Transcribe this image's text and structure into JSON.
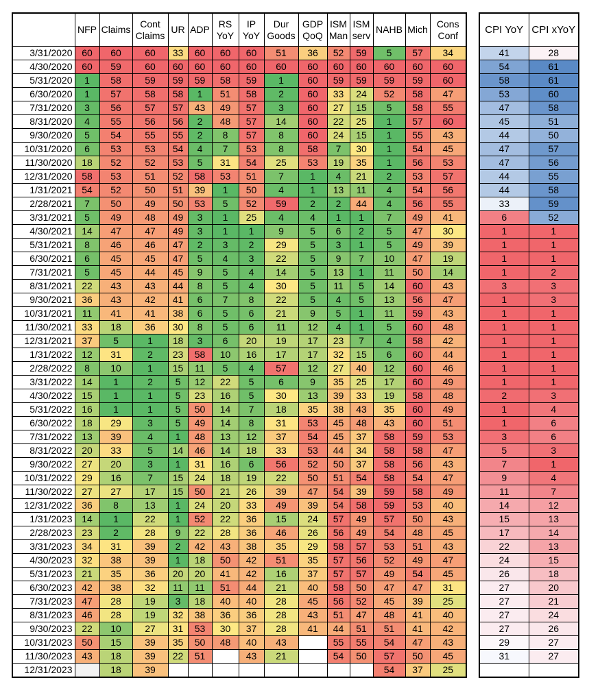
{
  "main_headers": [
    "",
    "NFP",
    "Claims",
    "Cont Claims",
    "UR",
    "ADP",
    "RS YoY",
    "IP YoY",
    "Dur Goods",
    "GDP QoQ",
    "ISM Man",
    "ISM serv",
    "NAHB",
    "Mich",
    "Cons Conf"
  ],
  "cpi_headers": [
    "CPI YoY",
    "CPI xYoY"
  ],
  "colors": {
    "low": "#5ab865",
    "mid": "#fde884",
    "high": "#f0666b",
    "cpi_low": "#f0666b",
    "cpi_mid": "#fcfcff",
    "cpi_high": "#5a8ac6",
    "blank": "#ffffff",
    "gray": "#f2f2f2"
  },
  "chart_data": {
    "type": "table",
    "rows": [
      {
        "date": "3/31/2020",
        "values": [
          60,
          60,
          60,
          33,
          60,
          60,
          60,
          51,
          36,
          52,
          59,
          5,
          57,
          34
        ],
        "cpi": [
          41,
          28
        ]
      },
      {
        "date": "4/30/2020",
        "values": [
          60,
          59,
          60,
          60,
          60,
          60,
          60,
          60,
          60,
          60,
          60,
          60,
          60,
          60
        ],
        "cpi": [
          54,
          61
        ]
      },
      {
        "date": "5/31/2020",
        "values": [
          1,
          58,
          59,
          59,
          59,
          58,
          59,
          1,
          60,
          59,
          59,
          59,
          59,
          60
        ],
        "cpi": [
          58,
          61
        ]
      },
      {
        "date": "6/30/2020",
        "values": [
          1,
          57,
          58,
          58,
          1,
          51,
          58,
          2,
          60,
          33,
          24,
          52,
          58,
          47
        ],
        "cpi": [
          53,
          60
        ]
      },
      {
        "date": "7/31/2020",
        "values": [
          3,
          56,
          57,
          57,
          43,
          49,
          57,
          3,
          60,
          27,
          15,
          5,
          58,
          55
        ],
        "cpi": [
          47,
          58
        ]
      },
      {
        "date": "8/31/2020",
        "values": [
          4,
          55,
          56,
          56,
          2,
          48,
          57,
          14,
          60,
          22,
          25,
          1,
          57,
          60
        ],
        "cpi": [
          45,
          51
        ]
      },
      {
        "date": "9/30/2020",
        "values": [
          5,
          54,
          55,
          55,
          2,
          8,
          57,
          8,
          60,
          24,
          15,
          1,
          55,
          43
        ],
        "cpi": [
          44,
          50
        ]
      },
      {
        "date": "10/31/2020",
        "values": [
          6,
          53,
          53,
          54,
          4,
          7,
          53,
          8,
          58,
          7,
          30,
          1,
          54,
          45
        ],
        "cpi": [
          47,
          57
        ]
      },
      {
        "date": "11/30/2020",
        "values": [
          18,
          52,
          52,
          53,
          5,
          31,
          54,
          25,
          53,
          19,
          35,
          1,
          56,
          53
        ],
        "cpi": [
          47,
          56
        ]
      },
      {
        "date": "12/31/2020",
        "values": [
          58,
          53,
          51,
          52,
          58,
          53,
          51,
          7,
          1,
          4,
          21,
          2,
          53,
          57
        ],
        "cpi": [
          44,
          55
        ]
      },
      {
        "date": "1/31/2021",
        "values": [
          54,
          52,
          50,
          51,
          39,
          1,
          50,
          4,
          1,
          13,
          11,
          4,
          54,
          56
        ],
        "cpi": [
          44,
          58
        ]
      },
      {
        "date": "2/28/2021",
        "values": [
          7,
          50,
          49,
          50,
          53,
          5,
          52,
          59,
          2,
          2,
          44,
          4,
          56,
          55
        ],
        "cpi": [
          33,
          59
        ]
      },
      {
        "date": "3/31/2021",
        "values": [
          5,
          49,
          48,
          49,
          3,
          1,
          25,
          4,
          4,
          1,
          1,
          7,
          49,
          41
        ],
        "cpi": [
          6,
          52
        ]
      },
      {
        "date": "4/30/2021",
        "values": [
          14,
          47,
          47,
          49,
          3,
          1,
          1,
          9,
          5,
          6,
          2,
          5,
          47,
          30
        ],
        "cpi": [
          1,
          1
        ]
      },
      {
        "date": "5/31/2021",
        "values": [
          8,
          46,
          46,
          47,
          2,
          3,
          2,
          29,
          5,
          3,
          1,
          5,
          49,
          39
        ],
        "cpi": [
          1,
          1
        ]
      },
      {
        "date": "6/30/2021",
        "values": [
          6,
          45,
          45,
          47,
          5,
          4,
          3,
          22,
          5,
          9,
          7,
          10,
          47,
          19
        ],
        "cpi": [
          1,
          1
        ]
      },
      {
        "date": "7/31/2021",
        "values": [
          5,
          45,
          44,
          45,
          9,
          5,
          4,
          14,
          5,
          13,
          1,
          11,
          50,
          14
        ],
        "cpi": [
          1,
          2
        ]
      },
      {
        "date": "8/31/2021",
        "values": [
          22,
          43,
          43,
          44,
          8,
          5,
          4,
          30,
          5,
          11,
          5,
          14,
          60,
          43
        ],
        "cpi": [
          3,
          3
        ]
      },
      {
        "date": "9/30/2021",
        "values": [
          36,
          43,
          42,
          41,
          6,
          7,
          8,
          22,
          5,
          4,
          5,
          13,
          56,
          47
        ],
        "cpi": [
          1,
          3
        ]
      },
      {
        "date": "10/31/2021",
        "values": [
          11,
          41,
          41,
          38,
          6,
          5,
          6,
          21,
          9,
          5,
          1,
          11,
          59,
          43
        ],
        "cpi": [
          1,
          1
        ]
      },
      {
        "date": "11/30/2021",
        "values": [
          33,
          18,
          36,
          30,
          8,
          5,
          6,
          11,
          12,
          4,
          1,
          5,
          60,
          48
        ],
        "cpi": [
          1,
          1
        ]
      },
      {
        "date": "12/31/2021",
        "values": [
          37,
          5,
          1,
          18,
          3,
          6,
          20,
          19,
          17,
          23,
          7,
          4,
          58,
          42
        ],
        "cpi": [
          1,
          1
        ]
      },
      {
        "date": "1/31/2022",
        "values": [
          12,
          31,
          2,
          23,
          58,
          10,
          16,
          17,
          17,
          32,
          15,
          6,
          60,
          44
        ],
        "cpi": [
          1,
          1
        ]
      },
      {
        "date": "2/28/2022",
        "values": [
          8,
          10,
          1,
          15,
          11,
          5,
          4,
          57,
          12,
          27,
          40,
          12,
          60,
          46
        ],
        "cpi": [
          1,
          1
        ]
      },
      {
        "date": "3/31/2022",
        "values": [
          14,
          1,
          2,
          5,
          12,
          22,
          5,
          6,
          9,
          35,
          25,
          17,
          60,
          49
        ],
        "cpi": [
          1,
          1
        ]
      },
      {
        "date": "4/30/2022",
        "values": [
          15,
          1,
          1,
          5,
          23,
          16,
          5,
          30,
          13,
          39,
          33,
          19,
          58,
          48
        ],
        "cpi": [
          2,
          3
        ]
      },
      {
        "date": "5/31/2022",
        "values": [
          16,
          1,
          1,
          5,
          50,
          14,
          7,
          18,
          35,
          38,
          43,
          35,
          60,
          49
        ],
        "cpi": [
          1,
          4
        ]
      },
      {
        "date": "6/30/2022",
        "values": [
          18,
          29,
          3,
          5,
          49,
          14,
          8,
          31,
          53,
          45,
          48,
          43,
          60,
          51
        ],
        "cpi": [
          1,
          6
        ]
      },
      {
        "date": "7/31/2022",
        "values": [
          13,
          39,
          4,
          1,
          48,
          13,
          12,
          37,
          54,
          45,
          37,
          58,
          59,
          53
        ],
        "cpi": [
          3,
          6
        ]
      },
      {
        "date": "8/31/2022",
        "values": [
          20,
          33,
          5,
          14,
          46,
          14,
          18,
          33,
          53,
          44,
          34,
          58,
          58,
          47
        ],
        "cpi": [
          5,
          3
        ]
      },
      {
        "date": "9/30/2022",
        "values": [
          27,
          20,
          3,
          1,
          31,
          16,
          6,
          56,
          52,
          50,
          37,
          58,
          56,
          43
        ],
        "cpi": [
          7,
          1
        ]
      },
      {
        "date": "10/31/2022",
        "values": [
          29,
          16,
          7,
          15,
          24,
          18,
          19,
          22,
          50,
          51,
          54,
          58,
          54,
          47
        ],
        "cpi": [
          9,
          4
        ]
      },
      {
        "date": "11/30/2022",
        "values": [
          27,
          27,
          17,
          15,
          50,
          21,
          26,
          39,
          47,
          54,
          39,
          59,
          58,
          49
        ],
        "cpi": [
          11,
          7
        ]
      },
      {
        "date": "12/31/2022",
        "values": [
          36,
          8,
          13,
          1,
          24,
          20,
          33,
          49,
          39,
          54,
          58,
          59,
          53,
          40
        ],
        "cpi": [
          14,
          12
        ]
      },
      {
        "date": "1/31/2023",
        "values": [
          14,
          1,
          22,
          1,
          52,
          22,
          36,
          15,
          24,
          57,
          49,
          57,
          50,
          43
        ],
        "cpi": [
          15,
          13
        ]
      },
      {
        "date": "2/28/2023",
        "values": [
          23,
          2,
          28,
          9,
          22,
          28,
          36,
          46,
          26,
          56,
          49,
          54,
          48,
          45
        ],
        "cpi": [
          17,
          14
        ]
      },
      {
        "date": "3/31/2023",
        "values": [
          34,
          31,
          39,
          2,
          42,
          43,
          38,
          35,
          29,
          58,
          57,
          53,
          51,
          43
        ],
        "cpi": [
          22,
          13
        ]
      },
      {
        "date": "4/30/2023",
        "values": [
          32,
          38,
          39,
          1,
          18,
          50,
          42,
          51,
          35,
          57,
          56,
          52,
          49,
          47
        ],
        "cpi": [
          24,
          15
        ]
      },
      {
        "date": "5/31/2023",
        "values": [
          21,
          35,
          36,
          20,
          20,
          41,
          42,
          16,
          37,
          57,
          57,
          49,
          54,
          45
        ],
        "cpi": [
          26,
          18
        ]
      },
      {
        "date": "6/30/2023",
        "values": [
          42,
          38,
          32,
          11,
          11,
          51,
          44,
          21,
          40,
          58,
          50,
          47,
          47,
          31
        ],
        "cpi": [
          27,
          20
        ]
      },
      {
        "date": "7/31/2023",
        "values": [
          47,
          28,
          19,
          3,
          18,
          40,
          40,
          28,
          45,
          56,
          52,
          45,
          39,
          25
        ],
        "cpi": [
          27,
          21
        ]
      },
      {
        "date": "8/31/2023",
        "values": [
          46,
          28,
          19,
          32,
          38,
          36,
          36,
          28,
          43,
          51,
          47,
          48,
          41,
          40
        ],
        "cpi": [
          27,
          24
        ]
      },
      {
        "date": "9/30/2023",
        "values": [
          22,
          10,
          27,
          31,
          53,
          30,
          37,
          28,
          41,
          44,
          51,
          51,
          41,
          42
        ],
        "cpi": [
          27,
          26
        ]
      },
      {
        "date": "10/31/2023",
        "values": [
          50,
          15,
          39,
          35,
          50,
          48,
          40,
          43,
          null,
          55,
          55,
          54,
          47,
          43
        ],
        "cpi": [
          29,
          27
        ]
      },
      {
        "date": "11/30/2023",
        "values": [
          43,
          18,
          39,
          22,
          51,
          null,
          43,
          21,
          null,
          54,
          50,
          57,
          50,
          45
        ],
        "cpi": [
          31,
          27
        ]
      },
      {
        "date": "12/31/2023",
        "values": [
          null,
          18,
          39,
          null,
          null,
          null,
          null,
          null,
          null,
          null,
          null,
          54,
          37,
          25
        ],
        "cpi": [
          null,
          null
        ]
      }
    ]
  }
}
